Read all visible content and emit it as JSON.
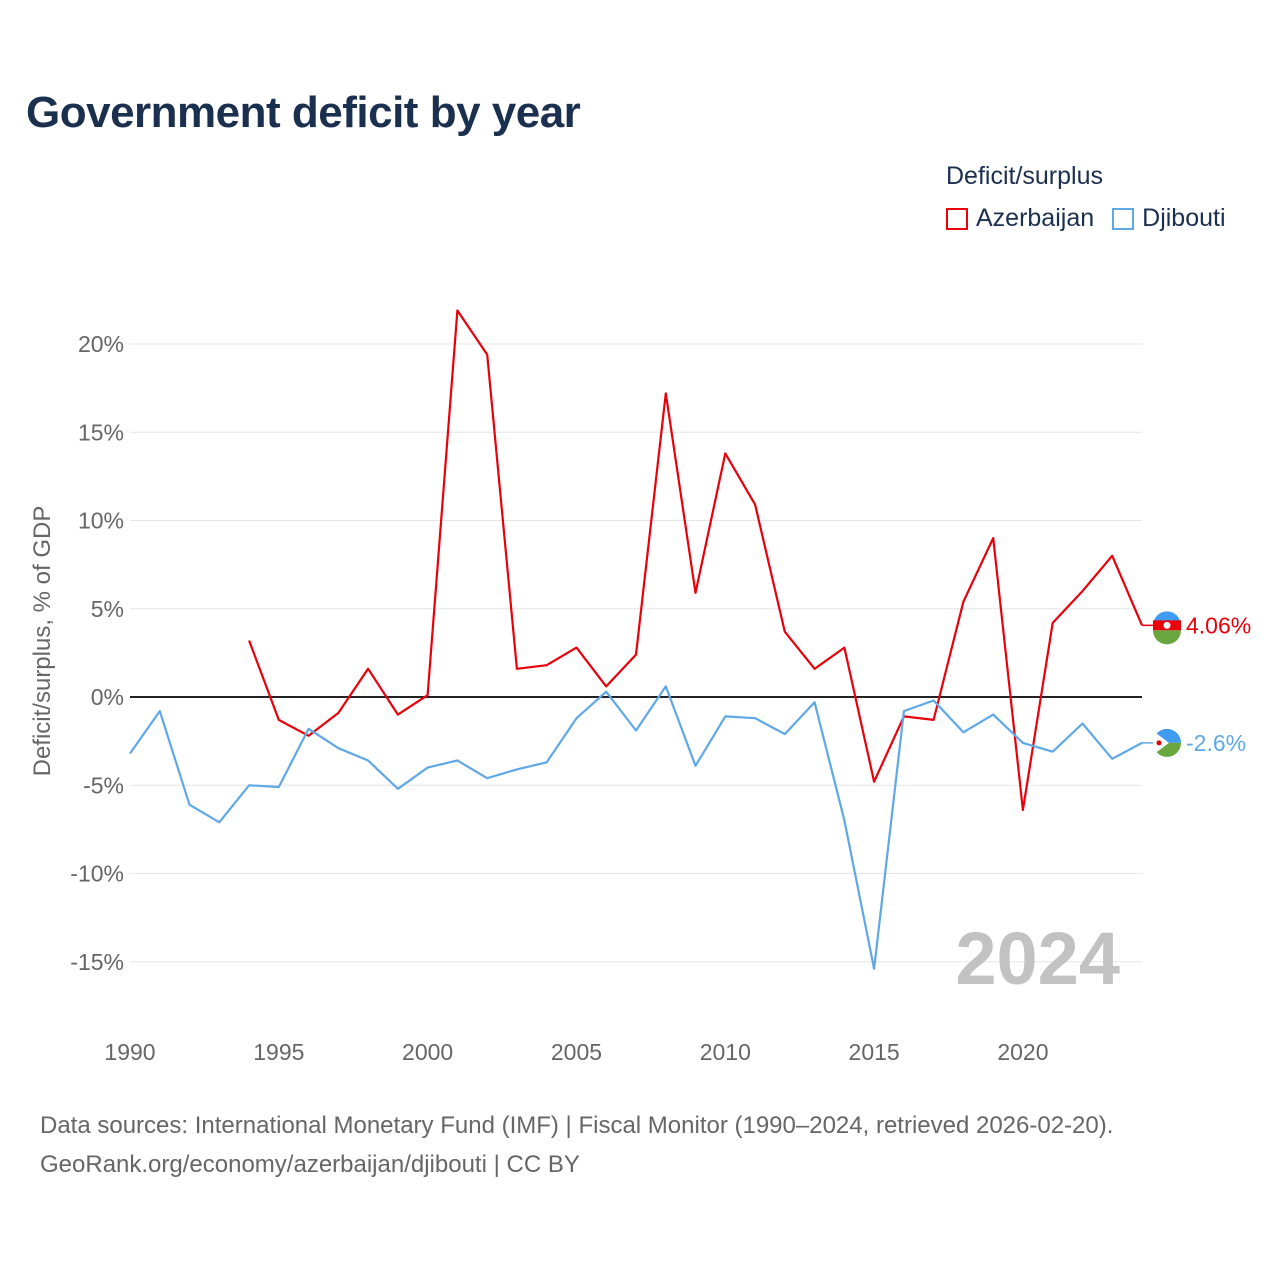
{
  "title": "Government deficit by year",
  "legend": {
    "title": "Deficit/surplus",
    "items": [
      {
        "label": "Azerbaijan",
        "color": "#e8000b"
      },
      {
        "label": "Djibouti",
        "color": "#5fa8e6"
      }
    ]
  },
  "chart_data": {
    "type": "line",
    "title": "Government deficit by year",
    "xlabel": "",
    "ylabel": "Deficit/surplus, % of GDP",
    "ylim": [
      -15,
      20
    ],
    "xlim": [
      1990,
      2024
    ],
    "y_ticks": [
      20,
      15,
      10,
      5,
      0,
      -5,
      -10,
      -15
    ],
    "y_tick_labels": [
      "20%",
      "15%",
      "10%",
      "5%",
      "0%",
      "-5%",
      "-10%",
      "-15%"
    ],
    "x_ticks": [
      1990,
      1995,
      2000,
      2005,
      2010,
      2015,
      2020
    ],
    "x_tick_labels": [
      "1990",
      "1995",
      "2000",
      "2005",
      "2010",
      "2015",
      "2020"
    ],
    "year_watermark": "2024",
    "series": [
      {
        "name": "Azerbaijan",
        "color": "#e8000b",
        "end_label": "4.06%",
        "x": [
          1994,
          1995,
          1996,
          1997,
          1998,
          1999,
          2000,
          2001,
          2002,
          2003,
          2004,
          2005,
          2006,
          2007,
          2008,
          2009,
          2010,
          2011,
          2012,
          2013,
          2014,
          2015,
          2016,
          2017,
          2018,
          2019,
          2020,
          2021,
          2022,
          2023,
          2024
        ],
        "values": [
          3.2,
          -1.3,
          -2.2,
          -0.9,
          1.6,
          -1.0,
          0.1,
          21.9,
          19.4,
          1.6,
          1.8,
          2.8,
          0.6,
          2.4,
          17.2,
          5.9,
          13.8,
          10.9,
          3.7,
          1.6,
          2.8,
          -4.8,
          -1.1,
          -1.3,
          5.4,
          9.0,
          -6.4,
          4.2,
          6.0,
          8.0,
          4.06
        ]
      },
      {
        "name": "Djibouti",
        "color": "#5fa8e6",
        "end_label": "-2.6%",
        "x": [
          1990,
          1991,
          1992,
          1993,
          1994,
          1995,
          1996,
          1997,
          1998,
          1999,
          2000,
          2001,
          2002,
          2003,
          2004,
          2005,
          2006,
          2007,
          2008,
          2009,
          2010,
          2011,
          2012,
          2013,
          2014,
          2015,
          2016,
          2017,
          2018,
          2019,
          2020,
          2021,
          2022,
          2023,
          2024
        ],
        "values": [
          -3.2,
          -0.8,
          -6.1,
          -7.1,
          -5.0,
          -5.1,
          -1.8,
          -2.9,
          -3.6,
          -5.2,
          -4.0,
          -3.6,
          -4.6,
          -4.1,
          -3.7,
          -1.2,
          0.3,
          -1.9,
          0.6,
          -3.9,
          -1.1,
          -1.2,
          -2.1,
          -0.3,
          -7.0,
          -15.4,
          -0.8,
          -0.2,
          -2.0,
          -1.0,
          -2.6,
          -3.1,
          -1.5,
          -3.5,
          -2.6
        ]
      }
    ]
  },
  "footer": {
    "line1": "Data sources: International Monetary Fund (IMF) | Fiscal Monitor (1990–2024, retrieved 2026-02-20).",
    "line2": "GeoRank.org/economy/azerbaijan/djibouti | CC BY"
  }
}
